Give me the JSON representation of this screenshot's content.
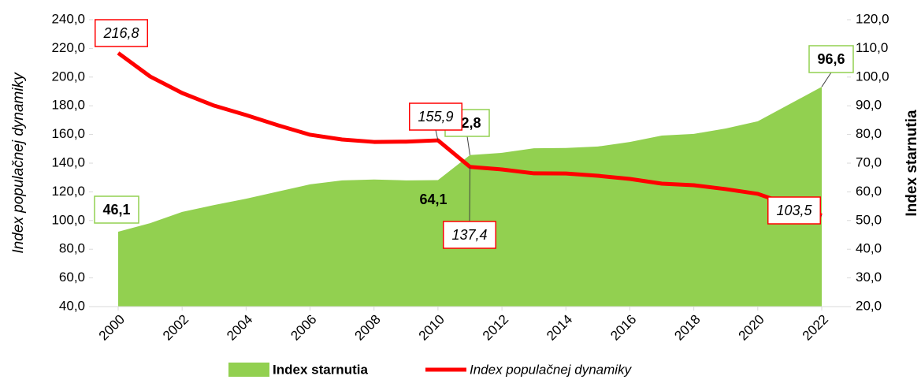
{
  "chart_data": {
    "type": "area_line",
    "y_axis_label": "Index populačnej dynamiky",
    "y2_axis_label": "Index starnutia",
    "x": [
      2000,
      2001,
      2002,
      2003,
      2004,
      2005,
      2006,
      2007,
      2008,
      2009,
      2010,
      2011,
      2012,
      2013,
      2014,
      2015,
      2016,
      2017,
      2018,
      2019,
      2020,
      2021,
      2022
    ],
    "xlim": [
      2000,
      2022
    ],
    "xticks": [
      2000,
      2002,
      2004,
      2006,
      2008,
      2010,
      2012,
      2014,
      2016,
      2018,
      2020,
      2022
    ],
    "ylim": [
      40,
      240
    ],
    "yticks": [
      {
        "value": 40,
        "label": "40,0"
      },
      {
        "value": 60,
        "label": "60,0"
      },
      {
        "value": 80,
        "label": "80,0"
      },
      {
        "value": 100,
        "label": "100,0"
      },
      {
        "value": 120,
        "label": "120,0"
      },
      {
        "value": 140,
        "label": "140,0"
      },
      {
        "value": 160,
        "label": "160,0"
      },
      {
        "value": 180,
        "label": "180,0"
      },
      {
        "value": 200,
        "label": "200,0"
      },
      {
        "value": 220,
        "label": "220,0"
      },
      {
        "value": 240,
        "label": "240,0"
      }
    ],
    "y2lim": [
      20,
      120
    ],
    "y2ticks": [
      {
        "value": 20,
        "label": "20,0"
      },
      {
        "value": 30,
        "label": "30,0"
      },
      {
        "value": 40,
        "label": "40,0"
      },
      {
        "value": 50,
        "label": "50,0"
      },
      {
        "value": 60,
        "label": "60,0"
      },
      {
        "value": 70,
        "label": "70,0"
      },
      {
        "value": 80,
        "label": "80,0"
      },
      {
        "value": 90,
        "label": "90,0"
      },
      {
        "value": 100,
        "label": "100,0"
      },
      {
        "value": 110,
        "label": "110,0"
      },
      {
        "value": 120,
        "label": "120,0"
      }
    ],
    "series": [
      {
        "name": "Index starnutia",
        "kind": "area",
        "axis": "y2",
        "color": "#92d050",
        "values": [
          46.1,
          49.1,
          53.0,
          55.4,
          57.6,
          60.1,
          62.6,
          64.0,
          64.3,
          64.0,
          64.1,
          72.8,
          73.6,
          75.2,
          75.3,
          75.8,
          77.4,
          79.6,
          80.2,
          82.1,
          84.6,
          90.6,
          96.6
        ],
        "value_labels": [
          "46,1",
          null,
          null,
          null,
          null,
          null,
          null,
          null,
          null,
          null,
          "64,1",
          "72,8",
          null,
          null,
          null,
          null,
          null,
          null,
          null,
          null,
          null,
          null,
          "96,6"
        ]
      },
      {
        "name": "Index populačnej dynamiky",
        "kind": "line",
        "axis": "y",
        "color": "#ff0000",
        "values": [
          216.8,
          200.4,
          188.9,
          180.1,
          173.5,
          166.4,
          159.8,
          156.5,
          154.8,
          155.0,
          155.9,
          137.4,
          135.6,
          132.9,
          132.8,
          131.2,
          129.0,
          125.7,
          124.6,
          121.9,
          118.6,
          110.9,
          103.5
        ],
        "value_labels": [
          "216,8",
          null,
          null,
          null,
          null,
          null,
          null,
          null,
          null,
          null,
          "155,9",
          "137,4",
          null,
          null,
          null,
          null,
          null,
          null,
          null,
          null,
          null,
          null,
          "103,5"
        ]
      }
    ]
  }
}
